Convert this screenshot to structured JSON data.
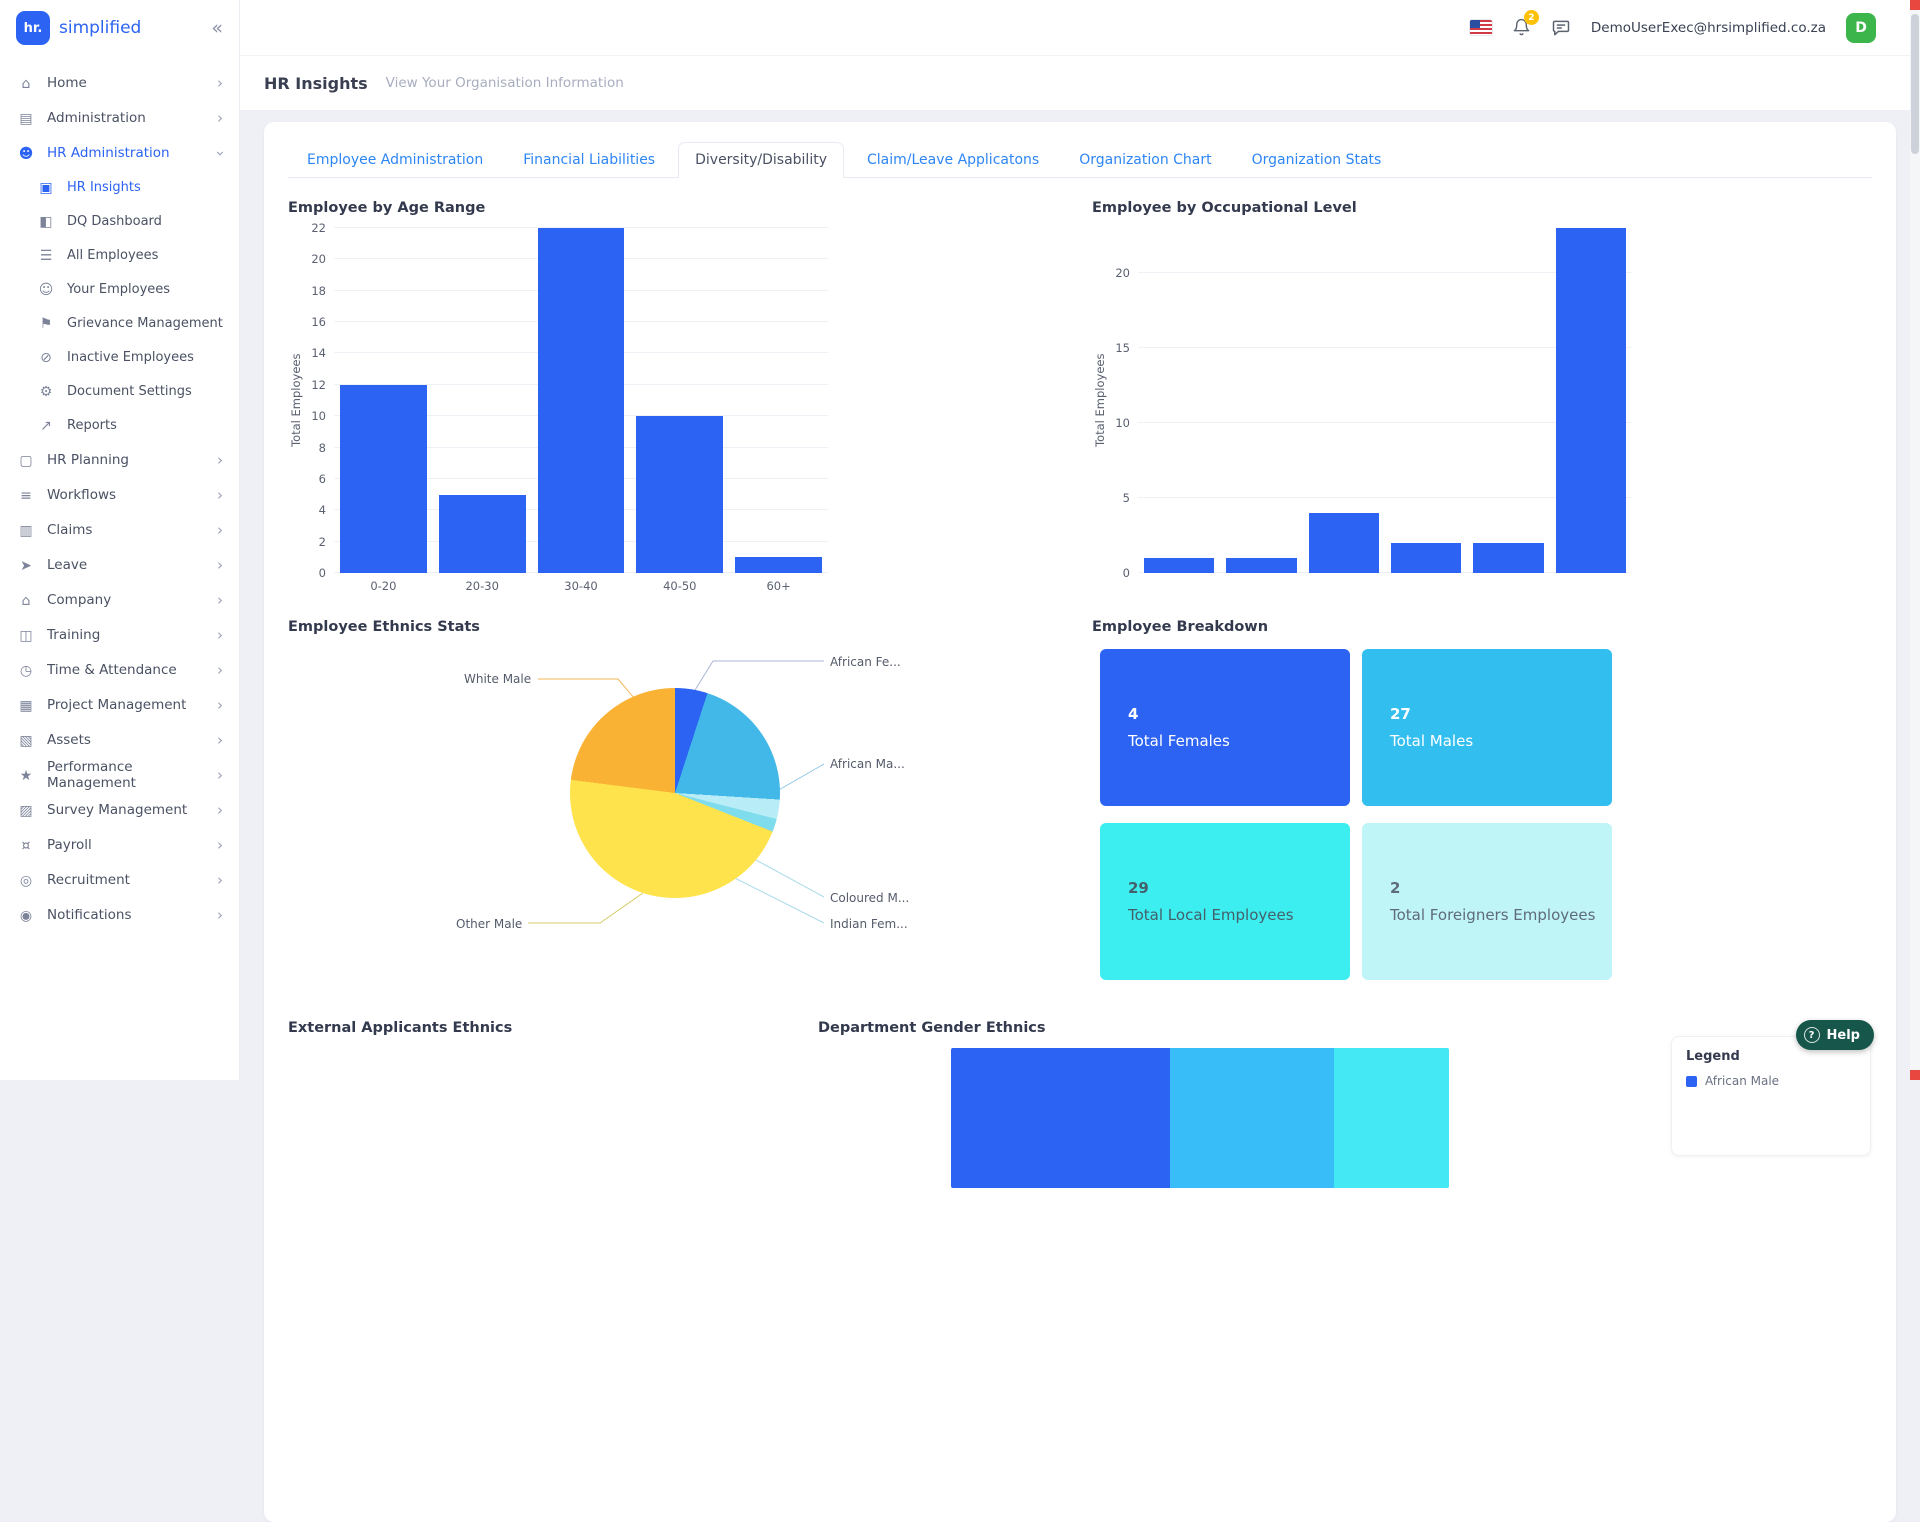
{
  "brand": {
    "logo_text": "hr.",
    "name": "simplified"
  },
  "topbar": {
    "email": "DemoUserExec@hrsimplified.co.za",
    "avatar_initial": "D",
    "notification_count": "2"
  },
  "page": {
    "title": "HR Insights",
    "subtitle": "View Your Organisation Information"
  },
  "sidebar": {
    "items": [
      {
        "label": "Home",
        "icon": "home-icon",
        "glyph": "⌂",
        "chevron": true
      },
      {
        "label": "Administration",
        "icon": "administration-icon",
        "glyph": "▤",
        "chevron": true
      },
      {
        "label": "HR Administration",
        "icon": "hr-administration-icon",
        "glyph": "☻",
        "chevron": true,
        "expanded": true,
        "active": true,
        "children": [
          {
            "label": "HR Insights",
            "icon": "hr-insights-icon",
            "glyph": "▣",
            "active": true
          },
          {
            "label": "DQ Dashboard",
            "icon": "dq-dashboard-icon",
            "glyph": "◧"
          },
          {
            "label": "All Employees",
            "icon": "all-employees-icon",
            "glyph": "☰"
          },
          {
            "label": "Your Employees",
            "icon": "your-employees-icon",
            "glyph": "☺"
          },
          {
            "label": "Grievance Management",
            "icon": "grievance-management-icon",
            "glyph": "⚑"
          },
          {
            "label": "Inactive Employees",
            "icon": "inactive-employees-icon",
            "glyph": "⊘"
          },
          {
            "label": "Document Settings",
            "icon": "document-settings-icon",
            "glyph": "⚙"
          },
          {
            "label": "Reports",
            "icon": "reports-icon",
            "glyph": "↗"
          }
        ]
      },
      {
        "label": "HR Planning",
        "icon": "hr-planning-icon",
        "glyph": "▢",
        "chevron": true
      },
      {
        "label": "Workflows",
        "icon": "workflows-icon",
        "glyph": "≡",
        "chevron": true
      },
      {
        "label": "Claims",
        "icon": "claims-icon",
        "glyph": "▥",
        "chevron": true
      },
      {
        "label": "Leave",
        "icon": "leave-icon",
        "glyph": "➤",
        "chevron": true
      },
      {
        "label": "Company",
        "icon": "company-icon",
        "glyph": "⌂",
        "chevron": true
      },
      {
        "label": "Training",
        "icon": "training-icon",
        "glyph": "◫",
        "chevron": true
      },
      {
        "label": "Time & Attendance",
        "icon": "time-attendance-icon",
        "glyph": "◷",
        "chevron": true
      },
      {
        "label": "Project Management",
        "icon": "project-management-icon",
        "glyph": "▦",
        "chevron": true
      },
      {
        "label": "Assets",
        "icon": "assets-icon",
        "glyph": "▧",
        "chevron": true
      },
      {
        "label": "Performance Management",
        "icon": "performance-management-icon",
        "glyph": "★",
        "chevron": true
      },
      {
        "label": "Survey Management",
        "icon": "survey-management-icon",
        "glyph": "▨",
        "chevron": true
      },
      {
        "label": "Payroll",
        "icon": "payroll-icon",
        "glyph": "¤",
        "chevron": true
      },
      {
        "label": "Recruitment",
        "icon": "recruitment-icon",
        "glyph": "◎",
        "chevron": true
      },
      {
        "label": "Notifications",
        "icon": "notifications-icon",
        "glyph": "◉",
        "chevron": true
      }
    ]
  },
  "tabs": [
    {
      "label": "Employee Administration",
      "active": false
    },
    {
      "label": "Financial Liabilities",
      "active": false
    },
    {
      "label": "Diversity/Disability",
      "active": true
    },
    {
      "label": "Claim/Leave Applicatons",
      "active": false
    },
    {
      "label": "Organization Chart",
      "active": false
    },
    {
      "label": "Organization Stats",
      "active": false
    }
  ],
  "chart_data": [
    {
      "type": "bar",
      "title": "Employee by Age Range",
      "ylabel": "Total Employees",
      "categories": [
        "0-20",
        "20-30",
        "30-40",
        "40-50",
        "60+"
      ],
      "values": [
        12,
        5,
        22,
        10,
        1
      ],
      "yticks": [
        0,
        2,
        4,
        6,
        8,
        10,
        12,
        14,
        16,
        18,
        20,
        22
      ],
      "ylim": [
        0,
        22
      ],
      "color": "#2c63f2",
      "grid": true,
      "legend": "none"
    },
    {
      "type": "bar",
      "title": "Employee by Occupational Level",
      "ylabel": "Total Employees",
      "categories": [
        "",
        "",
        "",
        "",
        "",
        ""
      ],
      "values": [
        1,
        1,
        4,
        2,
        2,
        23
      ],
      "yticks": [
        0,
        5,
        10,
        15,
        20
      ],
      "ylim": [
        0,
        23
      ],
      "color": "#2c63f2",
      "grid": true,
      "legend": "none"
    },
    {
      "type": "pie",
      "title": "Employee Ethnics Stats",
      "slices": [
        {
          "label": "African Fe...",
          "value": 5,
          "color": "#2c63f2"
        },
        {
          "label": "African Ma...",
          "value": 21,
          "color": "#41b8e8"
        },
        {
          "label": "Coloured M...",
          "value": 3,
          "color": "#b8ecf7"
        },
        {
          "label": "Indian Fem...",
          "value": 2,
          "color": "#7edced"
        },
        {
          "label": "Other Male",
          "value": 46,
          "color": "#ffe34d"
        },
        {
          "label": "White Male",
          "value": 23,
          "color": "#f9b234"
        }
      ]
    },
    {
      "type": "bar",
      "subtype": "stacked-horizontal",
      "title": "Department Gender Ethnics",
      "segments": [
        {
          "value": 44,
          "color": "#2c63f2"
        },
        {
          "value": 33,
          "color": "#38bdf8"
        },
        {
          "value": 23,
          "color": "#43e8f4"
        }
      ]
    }
  ],
  "breakdown": {
    "title": "Employee Breakdown",
    "cards": [
      {
        "value": "4",
        "label": "Total Females",
        "bg": "#2c63f2",
        "fg": "#ffffff"
      },
      {
        "value": "27",
        "label": "Total Males",
        "bg": "#33bef0",
        "fg": "#ffffff"
      },
      {
        "value": "29",
        "label": "Total Local Employees",
        "bg": "#3deef0",
        "fg": "#44606b"
      },
      {
        "value": "2",
        "label": "Total Foreigners Employees",
        "bg": "#c0f5f8",
        "fg": "#5e6b78"
      }
    ]
  },
  "sections": {
    "external_title": "External Applicants Ethnics",
    "legend_title": "Legend",
    "legend_items": [
      {
        "label": "African Male",
        "color": "#2c63f2"
      }
    ]
  },
  "help": {
    "label": "Help"
  }
}
